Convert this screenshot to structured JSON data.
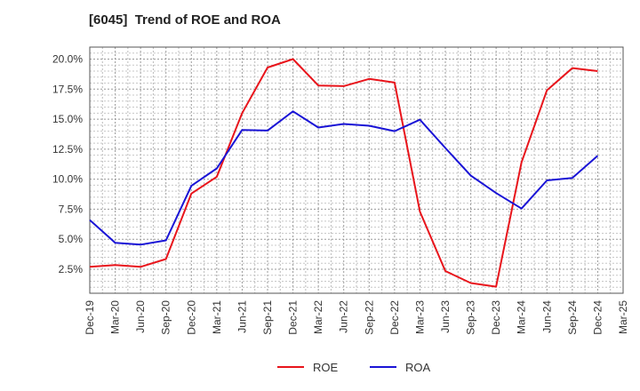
{
  "chart_data": {
    "type": "line",
    "title": "[6045]  Trend of ROE and ROA",
    "categories": [
      "Dec-19",
      "Mar-20",
      "Jun-20",
      "Sep-20",
      "Dec-20",
      "Mar-21",
      "Jun-21",
      "Sep-21",
      "Dec-21",
      "Mar-22",
      "Jun-22",
      "Sep-22",
      "Dec-22",
      "Mar-23",
      "Jun-23",
      "Sep-23",
      "Dec-23",
      "Mar-24",
      "Jun-24",
      "Sep-24",
      "Dec-24",
      "Mar-25"
    ],
    "y_ticks": [
      "2.5%",
      "5.0%",
      "7.5%",
      "10.0%",
      "12.5%",
      "15.0%",
      "17.5%",
      "20.0%"
    ],
    "y_tick_values": [
      2.5,
      5.0,
      7.5,
      10.0,
      12.5,
      15.0,
      17.5,
      20.0
    ],
    "ylim": [
      0.5,
      21.0
    ],
    "grid": true,
    "legend_position": "bottom-center",
    "series": [
      {
        "name": "ROE",
        "color": "#e8141b",
        "values": [
          2.7,
          2.85,
          2.7,
          3.35,
          8.8,
          10.2,
          15.5,
          19.3,
          20.0,
          17.8,
          17.75,
          18.35,
          18.05,
          7.3,
          2.35,
          1.35,
          1.05,
          11.4,
          17.4,
          19.25,
          19.0,
          null
        ]
      },
      {
        "name": "ROA",
        "color": "#1a14d6",
        "values": [
          6.6,
          4.7,
          4.55,
          4.9,
          9.45,
          10.9,
          14.1,
          14.05,
          15.65,
          14.3,
          14.6,
          14.45,
          14.0,
          14.95,
          12.6,
          10.3,
          8.85,
          7.55,
          9.9,
          10.1,
          11.95,
          null
        ]
      }
    ]
  }
}
